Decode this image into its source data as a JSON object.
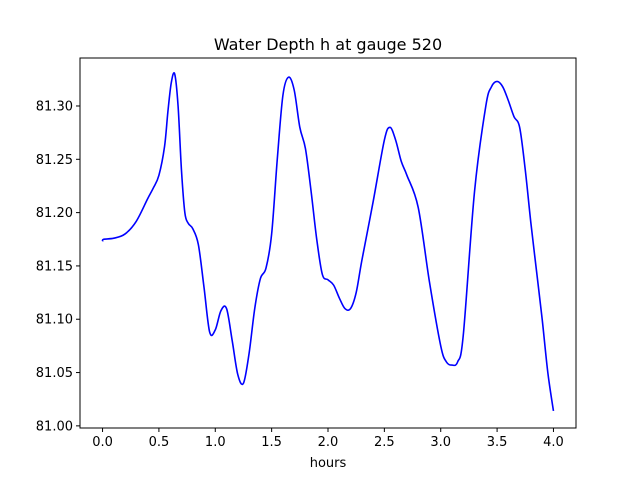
{
  "chart_data": {
    "type": "line",
    "title": "Water Depth h at gauge 520",
    "xlabel": "hours",
    "ylabel": "",
    "xlim": [
      -0.2,
      4.2
    ],
    "ylim": [
      80.998,
      81.345
    ],
    "xticks": [
      0.0,
      0.5,
      1.0,
      1.5,
      2.0,
      2.5,
      3.0,
      3.5,
      4.0
    ],
    "xtick_labels": [
      "0.0",
      "0.5",
      "1.0",
      "1.5",
      "2.0",
      "2.5",
      "3.0",
      "3.5",
      "4.0"
    ],
    "yticks": [
      81.0,
      81.05,
      81.1,
      81.15,
      81.2,
      81.25,
      81.3
    ],
    "ytick_labels": [
      "81.00",
      "81.05",
      "81.10",
      "81.15",
      "81.20",
      "81.25",
      "81.30"
    ],
    "grid": false,
    "series": [
      {
        "color": "#0000ff",
        "x": [
          0.0,
          0.01,
          0.1,
          0.2,
          0.3,
          0.4,
          0.45,
          0.5,
          0.55,
          0.58,
          0.61,
          0.64,
          0.67,
          0.7,
          0.73,
          0.76,
          0.8,
          0.85,
          0.9,
          0.95,
          1.0,
          1.05,
          1.1,
          1.15,
          1.2,
          1.25,
          1.3,
          1.35,
          1.4,
          1.45,
          1.5,
          1.55,
          1.6,
          1.65,
          1.7,
          1.75,
          1.8,
          1.85,
          1.9,
          1.95,
          2.0,
          2.05,
          2.1,
          2.15,
          2.2,
          2.25,
          2.3,
          2.4,
          2.5,
          2.55,
          2.6,
          2.65,
          2.7,
          2.8,
          2.9,
          3.0,
          3.05,
          3.1,
          3.15,
          3.2,
          3.3,
          3.4,
          3.45,
          3.5,
          3.55,
          3.6,
          3.65,
          3.7,
          3.75,
          3.8,
          3.85,
          3.9,
          3.95,
          4.0
        ],
        "y": [
          81.173,
          81.175,
          81.176,
          81.18,
          81.192,
          81.213,
          81.223,
          81.235,
          81.262,
          81.295,
          81.322,
          81.33,
          81.3,
          81.24,
          81.2,
          81.19,
          81.185,
          81.17,
          81.13,
          81.088,
          81.09,
          81.108,
          81.11,
          81.08,
          81.048,
          81.04,
          81.068,
          81.11,
          81.138,
          81.148,
          81.18,
          81.25,
          81.31,
          81.327,
          81.315,
          81.28,
          81.26,
          81.22,
          81.175,
          81.142,
          81.137,
          81.132,
          81.12,
          81.11,
          81.11,
          81.125,
          81.155,
          81.21,
          81.268,
          81.28,
          81.268,
          81.248,
          81.235,
          81.205,
          81.135,
          81.075,
          81.06,
          81.057,
          81.06,
          81.085,
          81.22,
          81.3,
          81.318,
          81.323,
          81.318,
          81.305,
          81.29,
          81.28,
          81.24,
          81.19,
          81.145,
          81.1,
          81.05,
          81.014
        ]
      }
    ]
  }
}
